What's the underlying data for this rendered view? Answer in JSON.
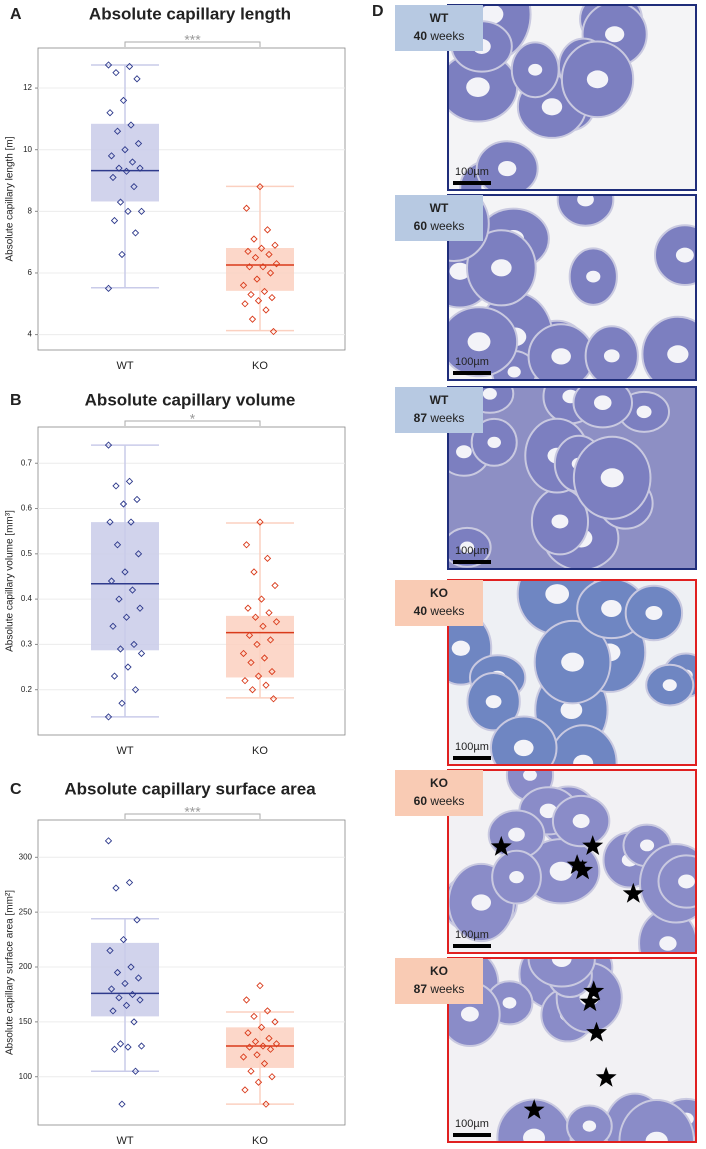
{
  "chart_data": [
    {
      "type": "box",
      "label": "A",
      "title": "Absolute capillary length",
      "y_label": "Absolute capillary length [m]",
      "categories": [
        "WT",
        "KO"
      ],
      "significance": "***",
      "ylim": [
        3.5,
        13.3
      ],
      "yticks": [
        4,
        6,
        8,
        10,
        12
      ],
      "grid": true,
      "series": [
        {
          "color": "#2e3a8c",
          "fill_color": "#c9cbe9",
          "box": {
            "whislo": 5.52,
            "q1": 8.32,
            "med": 9.32,
            "q3": 10.84,
            "whishi": 12.75
          },
          "points": [
            12.75,
            12.7,
            12.5,
            12.3,
            11.6,
            11.2,
            10.8,
            10.6,
            10.2,
            10.0,
            9.8,
            9.6,
            9.4,
            9.4,
            9.3,
            9.1,
            8.8,
            8.3,
            8.0,
            8.0,
            7.7,
            7.3,
            6.6,
            5.5
          ]
        },
        {
          "color": "#d93a1a",
          "fill_color": "#fbd0c0",
          "box": {
            "whislo": 4.13,
            "q1": 5.42,
            "med": 6.26,
            "q3": 6.81,
            "whishi": 8.81
          },
          "points": [
            8.8,
            8.1,
            7.4,
            7.1,
            6.9,
            6.8,
            6.7,
            6.6,
            6.5,
            6.3,
            6.2,
            6.2,
            6.0,
            5.8,
            5.6,
            5.4,
            5.3,
            5.2,
            5.1,
            5.0,
            4.8,
            4.5,
            4.1
          ]
        }
      ]
    },
    {
      "type": "box",
      "label": "B",
      "title": "Absolute capillary volume",
      "y_label": "Absolute capillary volume [mm³]",
      "categories": [
        "WT",
        "KO"
      ],
      "significance": "*",
      "ylim": [
        0.1,
        0.78
      ],
      "yticks": [
        0.2,
        0.3,
        0.4,
        0.5,
        0.6,
        0.7
      ],
      "grid": true,
      "series": [
        {
          "color": "#2e3a8c",
          "fill_color": "#c9cbe9",
          "box": {
            "whislo": 0.14,
            "q1": 0.287,
            "med": 0.434,
            "q3": 0.57,
            "whishi": 0.74
          },
          "points": [
            0.74,
            0.66,
            0.65,
            0.62,
            0.61,
            0.57,
            0.57,
            0.52,
            0.5,
            0.46,
            0.44,
            0.42,
            0.4,
            0.38,
            0.36,
            0.34,
            0.3,
            0.29,
            0.28,
            0.25,
            0.23,
            0.2,
            0.17,
            0.14
          ]
        },
        {
          "color": "#d93a1a",
          "fill_color": "#fbd0c0",
          "box": {
            "whislo": 0.182,
            "q1": 0.227,
            "med": 0.326,
            "q3": 0.363,
            "whishi": 0.568
          },
          "points": [
            0.57,
            0.52,
            0.49,
            0.46,
            0.43,
            0.4,
            0.38,
            0.37,
            0.36,
            0.35,
            0.34,
            0.32,
            0.31,
            0.3,
            0.28,
            0.27,
            0.26,
            0.24,
            0.23,
            0.22,
            0.21,
            0.2,
            0.18
          ]
        }
      ]
    },
    {
      "type": "box",
      "label": "C",
      "title": "Absolute capillary surface area",
      "y_label": "Absolute capillary surface area [mm²]",
      "categories": [
        "WT",
        "KO"
      ],
      "significance": "***",
      "ylim": [
        56,
        334
      ],
      "yticks": [
        100,
        150,
        200,
        250,
        300
      ],
      "grid": true,
      "series": [
        {
          "color": "#2e3a8c",
          "fill_color": "#c9cbe9",
          "box": {
            "whislo": 105,
            "q1": 155,
            "med": 176,
            "q3": 222,
            "whishi": 244
          },
          "points": [
            315,
            277,
            272,
            243,
            225,
            215,
            200,
            195,
            190,
            185,
            180,
            175,
            172,
            170,
            165,
            160,
            150,
            130,
            128,
            127,
            125,
            105,
            75
          ]
        },
        {
          "color": "#d93a1a",
          "fill_color": "#fbd0c0",
          "box": {
            "whislo": 75,
            "q1": 108,
            "med": 128,
            "q3": 145,
            "whishi": 159
          },
          "points": [
            183,
            170,
            160,
            155,
            150,
            145,
            140,
            135,
            132,
            130,
            128,
            127,
            125,
            120,
            118,
            112,
            105,
            100,
            95,
            88,
            75
          ]
        }
      ]
    }
  ],
  "panel_d": {
    "label": "D",
    "images": [
      {
        "genotype": "WT",
        "age": 40,
        "unit": "weeks",
        "scale_bar": "100µm"
      },
      {
        "genotype": "WT",
        "age": 60,
        "unit": "weeks",
        "scale_bar": "100µm"
      },
      {
        "genotype": "WT",
        "age": 87,
        "unit": "weeks",
        "scale_bar": "100µm"
      },
      {
        "genotype": "KO",
        "age": 40,
        "unit": "weeks",
        "scale_bar": "100µm"
      },
      {
        "genotype": "KO",
        "age": 60,
        "unit": "weeks",
        "scale_bar": "100µm"
      },
      {
        "genotype": "KO",
        "age": 87,
        "unit": "weeks",
        "scale_bar": "100µm"
      }
    ]
  }
}
